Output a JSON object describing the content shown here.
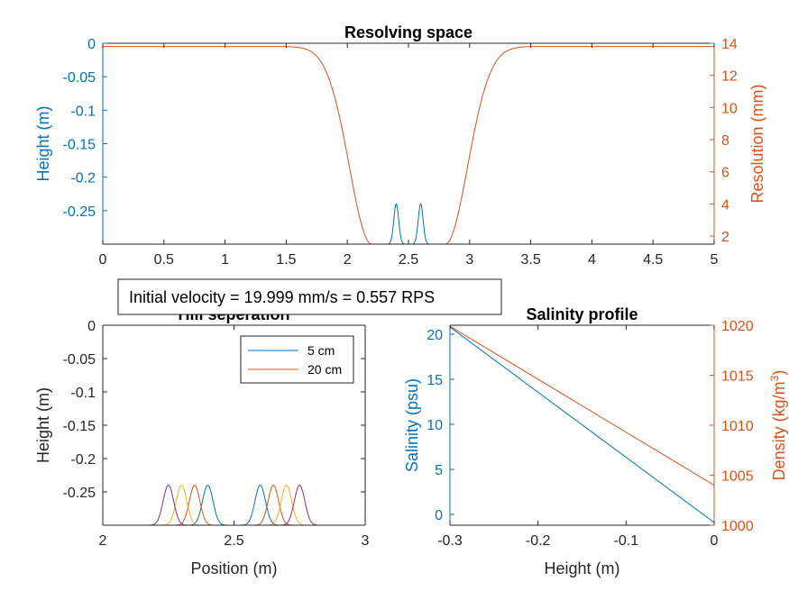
{
  "colors": {
    "blue": "#0072BD",
    "orange": "#D95319",
    "yellow": "#EDB120",
    "purple": "#7E2F8E",
    "axis": "#262626"
  },
  "annotation": {
    "text": "Initial velocity = 19.999 mm/s = 0.557 RPS"
  },
  "chart_data": [
    {
      "id": "resolving",
      "type": "line",
      "title": "Resolving space",
      "xlabel": "Position (m)",
      "ylabel": "Height (m)",
      "y2label": "Resolution (mm)",
      "xlim": [
        0,
        5
      ],
      "ylim": [
        -0.3,
        0
      ],
      "y2lim": [
        1.5,
        14
      ],
      "xticks": [
        0,
        0.5,
        1,
        1.5,
        2,
        2.5,
        3,
        3.5,
        4,
        4.5,
        5
      ],
      "xtick_labels": [
        "0",
        "0.5",
        "1",
        "1.5",
        "2",
        "2.5",
        "3",
        "3.5",
        "4",
        "4.5",
        "5"
      ],
      "yticks": [
        0,
        -0.05,
        -0.1,
        -0.15,
        -0.2,
        -0.25
      ],
      "ytick_labels": [
        "0",
        "-0.05",
        "-0.1",
        "-0.15",
        "-0.2",
        "-0.25"
      ],
      "y2ticks": [
        2,
        4,
        6,
        8,
        10,
        12,
        14
      ],
      "y2tick_labels": [
        "2",
        "4",
        "6",
        "8",
        "10",
        "12",
        "14"
      ],
      "series": [
        {
          "name": "Height",
          "axis": "left",
          "color": "blue",
          "baseline": -0.3,
          "hills": [
            {
              "center": 2.4,
              "peak": -0.24,
              "width": 0.02
            },
            {
              "center": 2.6,
              "peak": -0.24,
              "width": 0.02
            }
          ]
        },
        {
          "name": "Resolution",
          "axis": "right",
          "color": "orange",
          "min": 1.5,
          "max": 13.8,
          "low_start": 2.2,
          "low_end": 2.8,
          "halfwidth": 0.26
        }
      ]
    },
    {
      "id": "hill",
      "type": "line",
      "title": "Hill seperation",
      "xlabel": "Position (m)",
      "ylabel": "Height (m)",
      "xlim": [
        2,
        3
      ],
      "ylim": [
        -0.3,
        0
      ],
      "xticks": [
        2,
        2.5,
        3
      ],
      "xtick_labels": [
        "2",
        "2.5",
        "3"
      ],
      "yticks": [
        0,
        -0.05,
        -0.1,
        -0.15,
        -0.2,
        -0.25
      ],
      "ytick_labels": [
        "0",
        "-0.05",
        "-0.1",
        "-0.15",
        "-0.2",
        "-0.25"
      ],
      "legend": {
        "placement": "top-right",
        "entries": [
          "5 cm",
          "20 cm"
        ]
      },
      "series": [
        {
          "name": "5 cm",
          "color": "blue",
          "baseline": -0.3,
          "centers": [
            2.4,
            2.6
          ],
          "peak": -0.24,
          "width": 0.02
        },
        {
          "name": "20 cm",
          "color": "orange",
          "baseline": -0.3,
          "centers": [
            2.35,
            2.65
          ],
          "peak": -0.24,
          "width": 0.02
        },
        {
          "name": "",
          "color": "yellow",
          "baseline": -0.3,
          "centers": [
            2.3,
            2.7
          ],
          "peak": -0.24,
          "width": 0.02
        },
        {
          "name": "",
          "color": "purple",
          "baseline": -0.3,
          "centers": [
            2.25,
            2.75
          ],
          "peak": -0.24,
          "width": 0.02
        }
      ]
    },
    {
      "id": "salinity",
      "type": "line",
      "title": "Salinity profile",
      "xlabel": "Height (m)",
      "ylabel": "Salinity (psu)",
      "y2label": "Density (kg/m",
      "y2label_sup": "3",
      "y2label_end": ")",
      "xlim": [
        -0.3,
        0
      ],
      "ylim": [
        -1.2,
        21
      ],
      "y2lim": [
        1000,
        1020
      ],
      "xticks": [
        -0.3,
        -0.2,
        -0.1,
        0
      ],
      "xtick_labels": [
        "-0.3",
        "-0.2",
        "-0.1",
        "0"
      ],
      "yticks": [
        0,
        5,
        10,
        15,
        20
      ],
      "ytick_labels": [
        "0",
        "5",
        "10",
        "15",
        "20"
      ],
      "y2ticks": [
        1000,
        1005,
        1010,
        1015,
        1020
      ],
      "y2tick_labels": [
        "1000",
        "1005",
        "1010",
        "1015",
        "1020"
      ],
      "series": [
        {
          "name": "Salinity",
          "axis": "left",
          "color": "blue",
          "x": [
            -0.3,
            0
          ],
          "y": [
            20.8,
            -0.9
          ]
        },
        {
          "name": "Density",
          "axis": "right",
          "color": "orange",
          "x": [
            -0.3,
            0
          ],
          "y": [
            1019.9,
            1004
          ]
        }
      ]
    }
  ]
}
